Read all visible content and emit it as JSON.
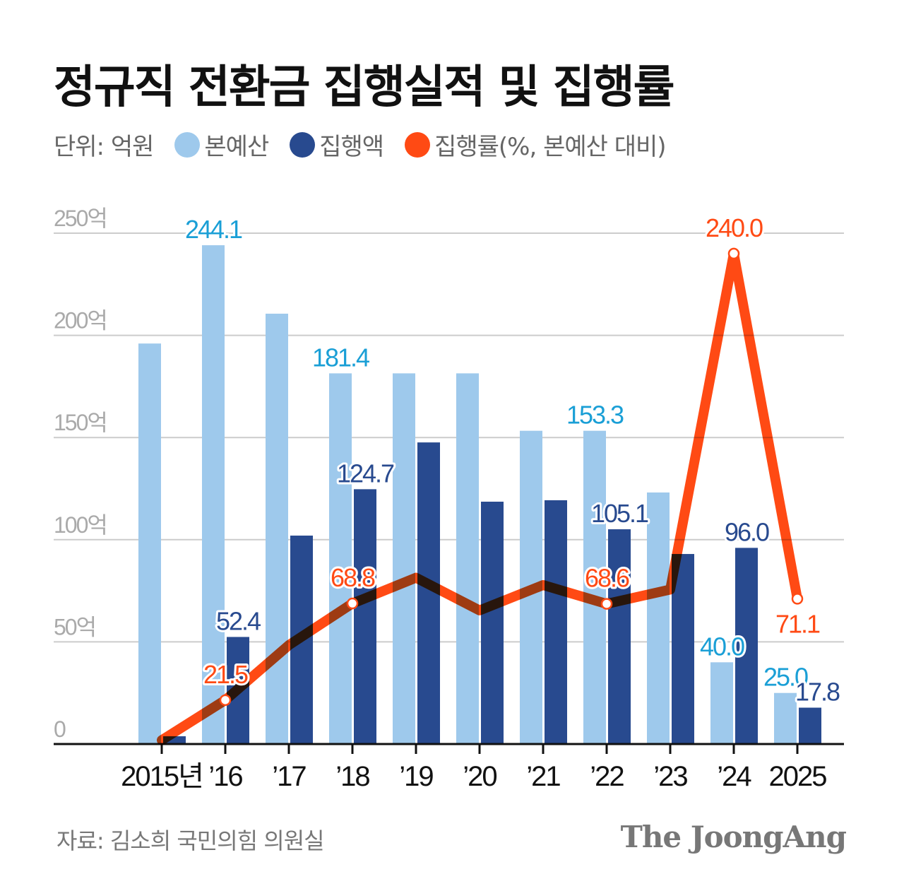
{
  "title": "정규직 전환금 집행실적 및 집행률",
  "legend": {
    "unit": "단위: 억원",
    "items": [
      {
        "label": "본예산",
        "color": "#9ec9ec"
      },
      {
        "label": "집행액",
        "color": "#284a8f"
      },
      {
        "label": "집행률(%, 본예산 대비)",
        "color": "#ff4a14"
      }
    ]
  },
  "source": "자료: 김소희 국민의힘 의원실",
  "brand": "The JoongAng",
  "chart_data": {
    "type": "bar",
    "categories": [
      "2015년",
      "’16",
      "’17",
      "’18",
      "’19",
      "’20",
      "’21",
      "’22",
      "’23",
      "’24",
      "2025"
    ],
    "ylim": [
      0,
      250
    ],
    "yticks": [
      0,
      50,
      100,
      150,
      200,
      250
    ],
    "ytick_labels": [
      "0",
      "50억",
      "100억",
      "150억",
      "200억",
      "250억"
    ],
    "grid": true,
    "series": [
      {
        "name": "본예산",
        "type": "bar",
        "color": "#9ec9ec",
        "label_color": "#1a9fd6",
        "values": [
          196,
          244.1,
          210.6,
          181.4,
          181.4,
          181.4,
          153.3,
          153.3,
          123.1,
          40.0,
          25.0
        ],
        "labels": [
          null,
          "244.1",
          null,
          "181.4",
          null,
          null,
          null,
          "153.3",
          null,
          "40.0",
          "25.0"
        ]
      },
      {
        "name": "집행액",
        "type": "bar",
        "color": "#284a8f",
        "label_color": "#284a8f",
        "values": [
          3.8,
          52.4,
          102,
          124.7,
          147.6,
          118.6,
          119.3,
          105.1,
          93,
          96.0,
          17.8
        ],
        "labels": [
          null,
          "52.4",
          null,
          "124.7",
          null,
          null,
          null,
          "105.1",
          null,
          "96.0",
          "17.8"
        ]
      },
      {
        "name": "집행률(%, 본예산 대비)",
        "type": "line",
        "color": "#ff4a14",
        "label_color": "#ff4a14",
        "values": [
          1.9,
          21.5,
          48.4,
          68.8,
          81.4,
          65.4,
          77.8,
          68.6,
          75.6,
          240.0,
          71.1
        ],
        "labels": [
          null,
          "21.5",
          null,
          "68.8",
          null,
          null,
          null,
          "68.6",
          null,
          "240.0",
          "71.1"
        ]
      }
    ]
  }
}
